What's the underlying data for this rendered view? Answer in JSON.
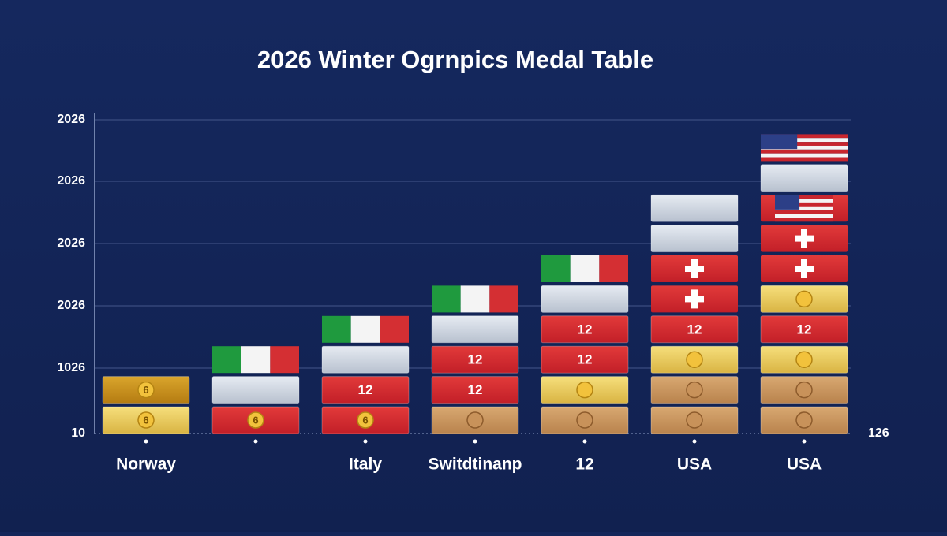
{
  "header": {
    "title": "2026 Winter Ogrnpics Medal Table"
  },
  "y_axis_labels": [
    "2026",
    "2026",
    "2026",
    "2026",
    "1026",
    "10"
  ],
  "right_label": "126",
  "columns": [
    {
      "label": "Norway",
      "blocks": [
        "6",
        "6"
      ]
    },
    {
      "label": null,
      "blocks": [
        "6",
        null,
        null
      ]
    },
    {
      "label": "Italy",
      "blocks": [
        "6",
        "12",
        null,
        null
      ]
    },
    {
      "label": "Switdtinanp",
      "blocks": [
        null,
        "12",
        "12",
        null,
        null
      ]
    },
    {
      "label": "12",
      "blocks": [
        null,
        null,
        "12",
        "12",
        null,
        null
      ]
    },
    {
      "label": "USA",
      "blocks": [
        null,
        null,
        null,
        "12",
        null,
        null,
        null,
        null
      ]
    },
    {
      "label": "USA",
      "blocks": [
        null,
        null,
        null,
        "12",
        null,
        null,
        null,
        null,
        null,
        null
      ]
    }
  ]
}
